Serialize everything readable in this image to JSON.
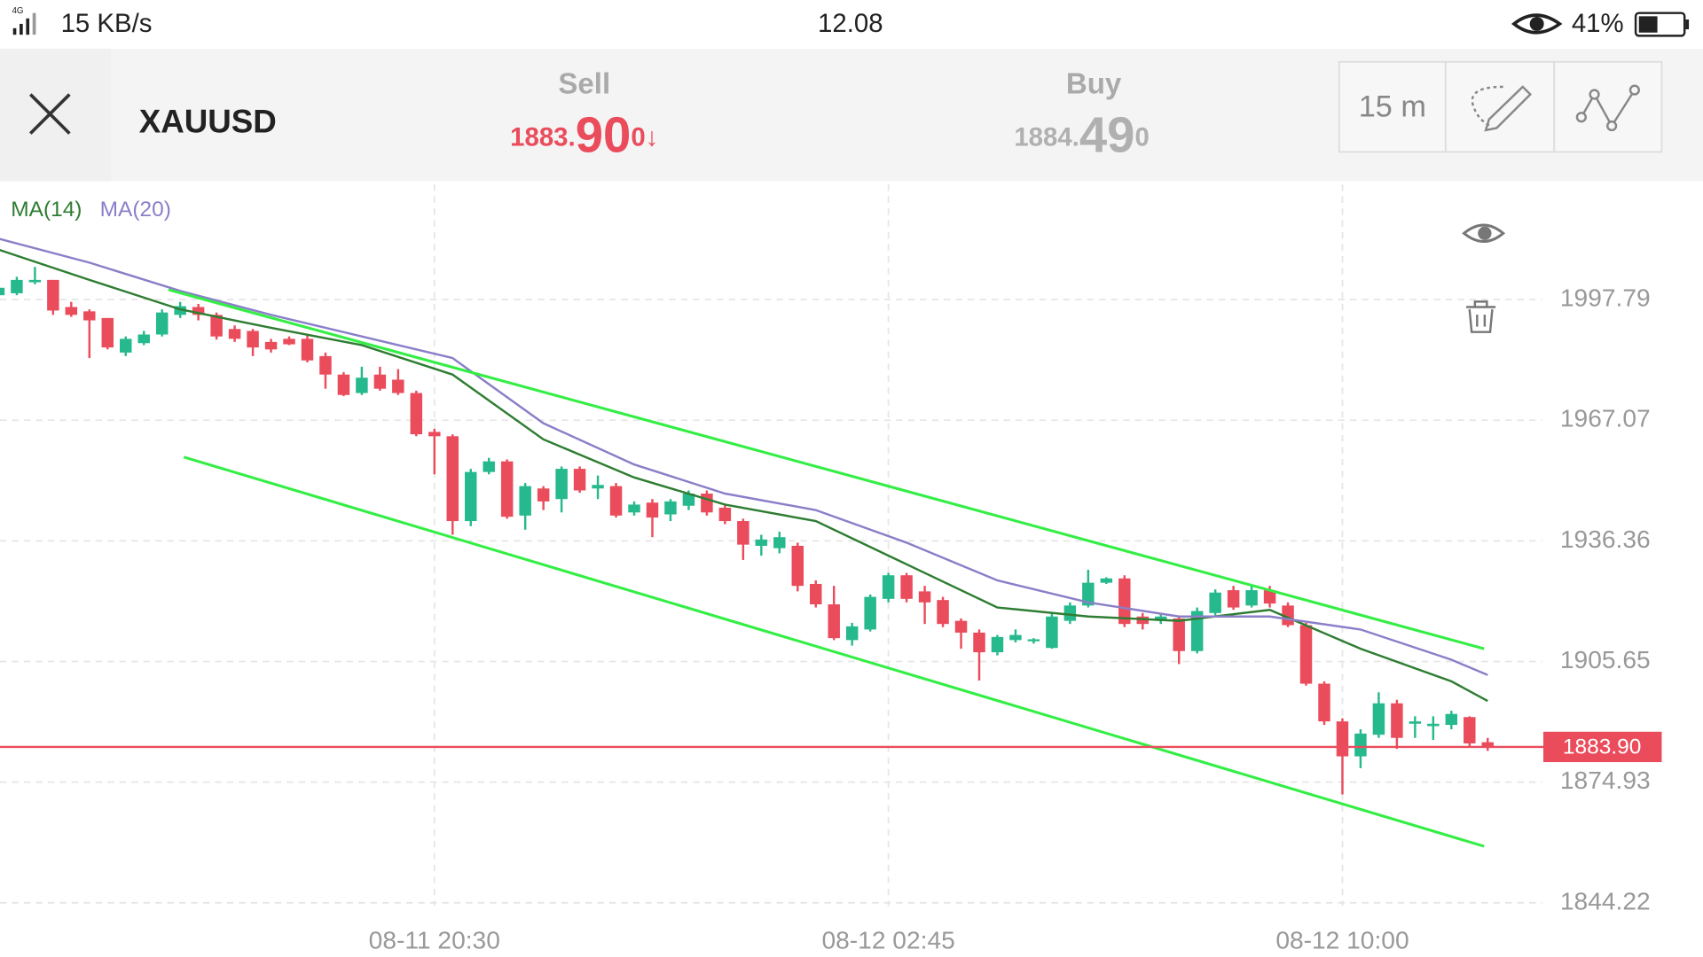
{
  "status_bar": {
    "network": "4G",
    "speed": "15 KB/s",
    "time": "12.08",
    "battery": "41%"
  },
  "header": {
    "symbol": "XAUUSD",
    "sell": {
      "label": "Sell",
      "price_main": "1883.",
      "price_big": "90",
      "price_tail": "0↓"
    },
    "buy": {
      "label": "Buy",
      "price_main": "1884.",
      "price_big": "49",
      "price_tail": "0"
    },
    "timeframe": "15 m"
  },
  "chart_data": {
    "type": "candlestick",
    "categories": [
      null,
      null,
      null,
      null,
      null,
      null,
      null,
      null,
      null,
      null,
      null,
      null,
      null,
      null,
      null,
      null,
      null,
      null,
      null,
      null,
      null,
      null,
      null,
      null,
      "08-11 20:30",
      null,
      null,
      null,
      null,
      null,
      null,
      null,
      null,
      null,
      null,
      null,
      null,
      null,
      null,
      null,
      null,
      null,
      null,
      null,
      null,
      null,
      null,
      null,
      null,
      "08-12 02:45",
      null,
      null,
      null,
      null,
      null,
      null,
      null,
      null,
      null,
      null,
      null,
      null,
      null,
      null,
      null,
      null,
      null,
      null,
      null,
      null,
      null,
      null,
      null,
      null,
      "08-12 10:00",
      null,
      null,
      null,
      null,
      null,
      null,
      null,
      null
    ],
    "open": [
      1998.9,
      1999.4,
      2002.2,
      2002.8,
      1995.9,
      1994.8,
      1993.1,
      1984.3,
      1986.7,
      1988.9,
      1993.9,
      1995.9,
      1993.9,
      1990.3,
      1989.8,
      1987.0,
      1987.8,
      1987.8,
      1983.4,
      1978.7,
      1974.0,
      1978.7,
      1977.4,
      1974.0,
      1964.1,
      1963.0,
      1941.4,
      1953.9,
      1956.6,
      1942.8,
      1949.7,
      1947.0,
      1954.7,
      1949.7,
      1950.3,
      1943.6,
      1946.1,
      1943.1,
      1945.3,
      1948.4,
      1944.8,
      1941.4,
      1935.1,
      1934.5,
      1935.1,
      1925.4,
      1920.2,
      1911.1,
      1913.8,
      1921.6,
      1927.6,
      1923.5,
      1921.3,
      1916.0,
      1913.0,
      1908.0,
      1911.1,
      1910.8,
      1909.1,
      1916.0,
      1919.9,
      1925.7,
      1926.8,
      1917.1,
      1916.0,
      1916.6,
      1908.3,
      1918.0,
      1923.8,
      1919.9,
      1923.8,
      1919.9,
      1914.9,
      1900.0,
      1890.4,
      1881.5,
      1887.0,
      1895.0,
      1889.8,
      1889.2,
      1889.5,
      1891.5,
      1885.1
    ],
    "high": [
      2002.8,
      2003.6,
      2006.1,
      2002.8,
      1997.2,
      1995.3,
      1993.1,
      1988.4,
      1989.8,
      1995.3,
      1997.2,
      1996.7,
      1994.5,
      1991.2,
      1990.3,
      1987.8,
      1988.4,
      1988.9,
      1984.3,
      1979.3,
      1980.7,
      1980.7,
      1980.1,
      1974.6,
      1964.9,
      1963.5,
      1954.7,
      1957.5,
      1957.1,
      1951.1,
      1950.3,
      1955.3,
      1955.3,
      1953.0,
      1951.1,
      1946.4,
      1947.0,
      1947.0,
      1949.2,
      1949.2,
      1945.6,
      1942.0,
      1937.9,
      1938.7,
      1935.9,
      1926.3,
      1924.9,
      1915.5,
      1922.7,
      1928.2,
      1928.2,
      1924.9,
      1922.1,
      1916.6,
      1913.8,
      1912.4,
      1913.8,
      1911.6,
      1918.0,
      1920.7,
      1929.0,
      1927.1,
      1927.6,
      1918.0,
      1918.0,
      1917.1,
      1919.4,
      1924.0,
      1924.9,
      1924.9,
      1924.9,
      1920.7,
      1915.5,
      1900.6,
      1891.2,
      1888.4,
      1897.8,
      1895.9,
      1891.7,
      1891.7,
      1893.1,
      1891.7,
      1886.2
    ],
    "low": [
      1996.1,
      1998.9,
      2001.7,
      1993.9,
      1993.4,
      1982.9,
      1985.1,
      1983.4,
      1986.2,
      1988.4,
      1993.1,
      1992.5,
      1987.6,
      1987.0,
      1983.4,
      1984.3,
      1986.2,
      1981.8,
      1975.1,
      1973.2,
      1973.5,
      1974.6,
      1973.5,
      1963.0,
      1953.3,
      1937.9,
      1940.1,
      1953.3,
      1942.0,
      1939.2,
      1944.2,
      1943.6,
      1948.6,
      1947.0,
      1942.3,
      1942.8,
      1937.3,
      1941.4,
      1944.2,
      1942.8,
      1940.6,
      1931.5,
      1932.6,
      1933.2,
      1923.5,
      1919.4,
      1911.1,
      1909.7,
      1913.3,
      1920.7,
      1920.7,
      1915.2,
      1914.4,
      1908.9,
      1900.8,
      1907.2,
      1910.5,
      1910.2,
      1908.9,
      1915.2,
      1919.4,
      1925.4,
      1914.4,
      1913.8,
      1915.2,
      1905.0,
      1907.7,
      1917.4,
      1918.8,
      1919.4,
      1919.4,
      1914.4,
      1899.5,
      1889.5,
      1871.8,
      1878.5,
      1886.2,
      1883.4,
      1886.2,
      1885.7,
      1888.4,
      1884.0,
      1882.9
    ],
    "close": [
      2000.8,
      2002.8,
      2002.8,
      1995.0,
      1993.9,
      1992.5,
      1985.6,
      1987.8,
      1988.9,
      1994.5,
      1996.1,
      1993.9,
      1988.4,
      1987.8,
      1985.6,
      1985.1,
      1986.4,
      1982.3,
      1978.7,
      1973.5,
      1977.9,
      1975.1,
      1974.0,
      1963.5,
      1963.0,
      1941.4,
      1953.9,
      1956.6,
      1942.5,
      1950.3,
      1946.4,
      1954.7,
      1949.2,
      1950.6,
      1942.8,
      1945.6,
      1942.3,
      1946.4,
      1948.4,
      1943.6,
      1941.4,
      1935.4,
      1936.7,
      1937.3,
      1924.9,
      1920.2,
      1911.6,
      1914.6,
      1922.1,
      1927.6,
      1921.6,
      1920.7,
      1915.2,
      1913.0,
      1908.0,
      1911.9,
      1912.4,
      1911.3,
      1917.1,
      1919.9,
      1925.7,
      1926.8,
      1915.2,
      1915.2,
      1917.1,
      1908.3,
      1918.5,
      1923.2,
      1919.4,
      1923.8,
      1920.4,
      1914.9,
      1900.0,
      1890.4,
      1881.5,
      1887.3,
      1895.0,
      1886.2,
      1890.4,
      1889.8,
      1892.3,
      1884.8,
      1883.9
    ],
    "up_color": "#26b98d",
    "down_color": "#ea4c5c",
    "indicators": [
      {
        "name": "MA(14)",
        "color": "#2e7d32",
        "x": [
          0,
          5,
          10,
          15,
          20,
          25,
          30,
          35,
          40,
          45,
          50,
          55,
          60,
          65,
          70,
          75,
          80,
          82
        ],
        "values": [
          2010.5,
          2002.8,
          1995.3,
          1990.6,
          1986.2,
          1978.7,
          1962.2,
          1952.5,
          1945.6,
          1941.4,
          1930.4,
          1919.4,
          1917.1,
          1916.0,
          1918.8,
          1908.9,
          1900.6,
          1895.6
        ]
      },
      {
        "name": "MA(20)",
        "color": "#8a7fc8",
        "x": [
          0,
          5,
          10,
          15,
          20,
          25,
          30,
          35,
          40,
          45,
          50,
          55,
          60,
          65,
          70,
          75,
          80,
          82
        ],
        "values": [
          2013.3,
          2007.2,
          2000.0,
          1993.9,
          1988.4,
          1982.9,
          1966.3,
          1955.8,
          1948.4,
          1944.2,
          1935.9,
          1926.3,
          1920.7,
          1917.1,
          1917.1,
          1913.8,
          1906.1,
          1902.2
        ]
      }
    ],
    "trend_lines": [
      {
        "color": "#33ee44",
        "x": [
          9.35,
          81.8
        ],
        "values": [
          2000.3,
          1908.9
        ]
      },
      {
        "color": "#33ee44",
        "x": [
          10.2,
          81.8
        ],
        "values": [
          1957.7,
          1858.6
        ]
      }
    ],
    "price_line": {
      "value": 1883.9,
      "label": "1883.90",
      "color": "#ea4c5c"
    },
    "ylim": [
      1843.4,
      2027.1
    ],
    "yticks": [
      1997.79,
      1967.07,
      1936.36,
      1905.65,
      1874.93,
      1844.22
    ],
    "grid": true
  }
}
